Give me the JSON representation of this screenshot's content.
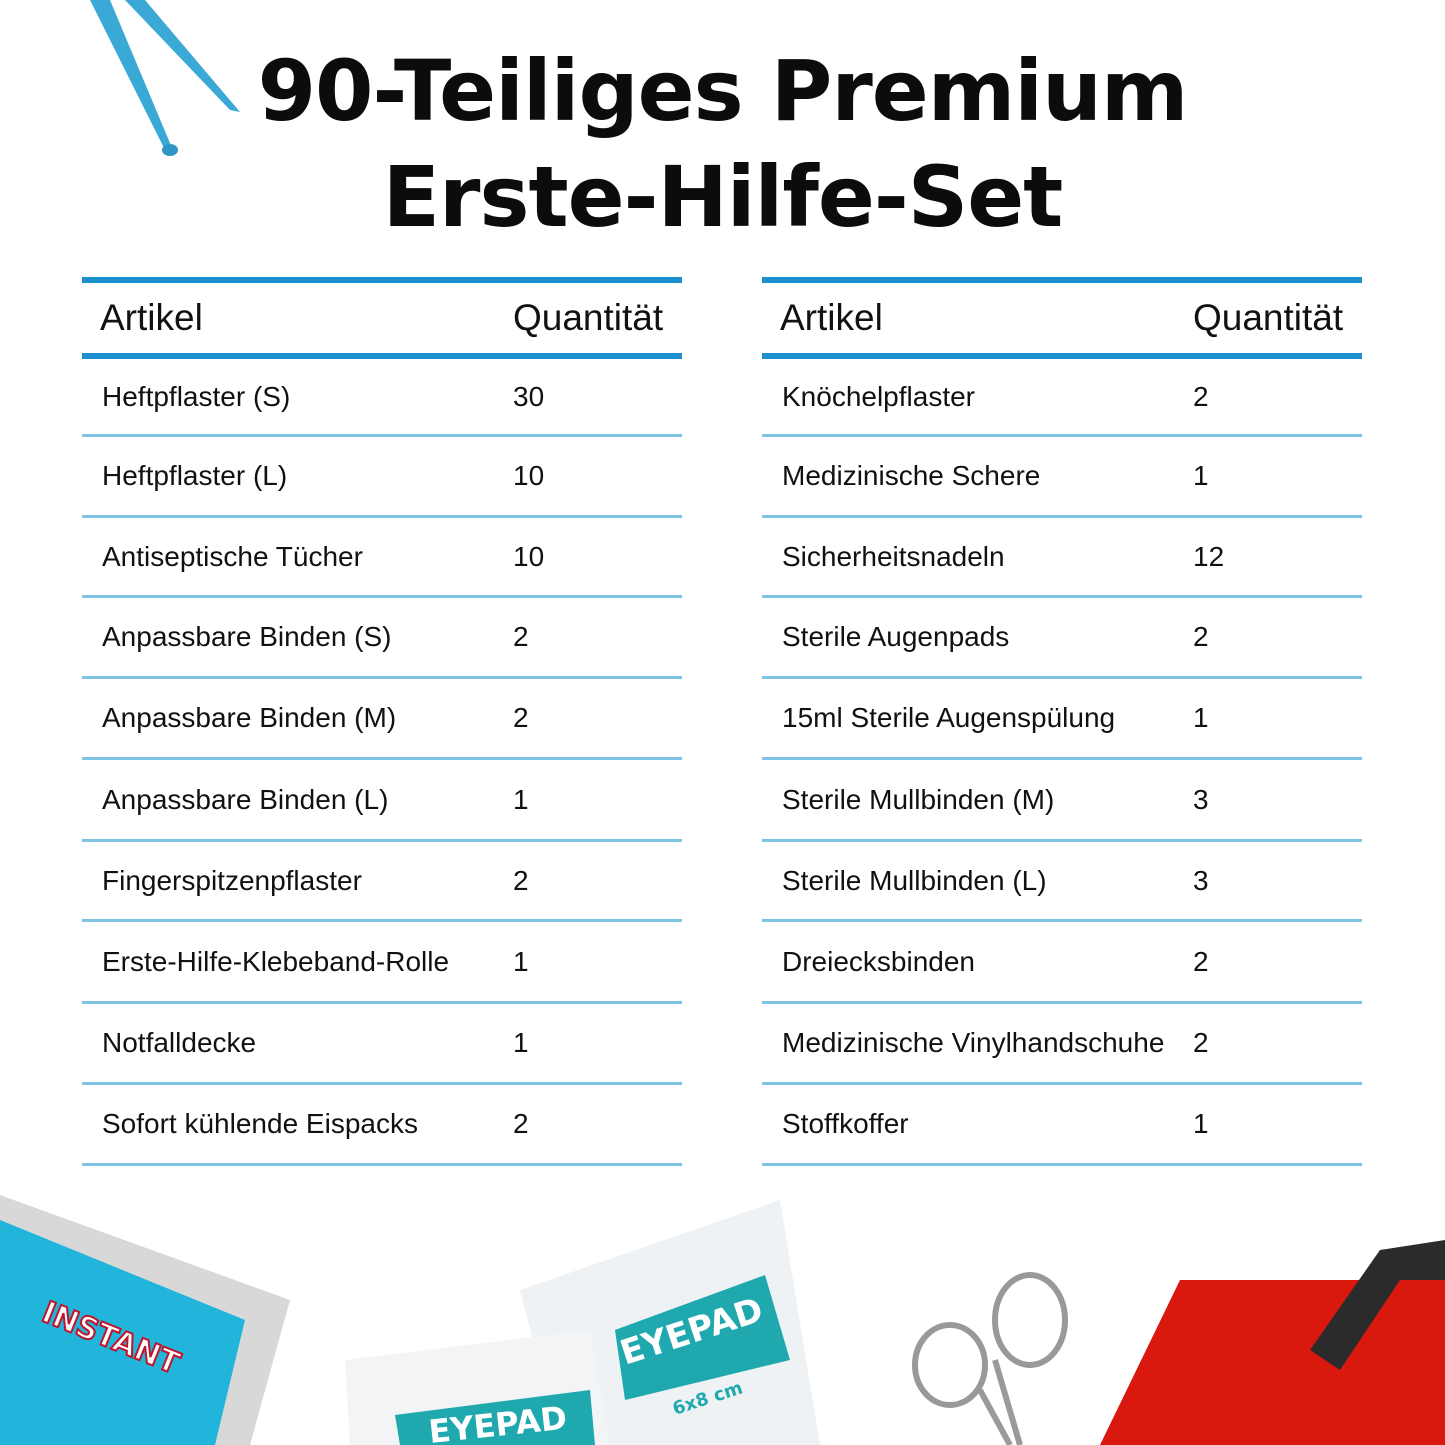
{
  "title": {
    "line1": "90-Teiliges Premium",
    "line2": "Erste-Hilfe-Set"
  },
  "tables": [
    {
      "headers": {
        "article": "Artikel",
        "quantity": "Quantität"
      },
      "rows": [
        {
          "article": "Heftpflaster (S)",
          "quantity": "30"
        },
        {
          "article": "Heftpflaster (L)",
          "quantity": "10"
        },
        {
          "article": "Antiseptische Tücher",
          "quantity": "10"
        },
        {
          "article": "Anpassbare Binden (S)",
          "quantity": "2"
        },
        {
          "article": "Anpassbare Binden (M)",
          "quantity": "2"
        },
        {
          "article": "Anpassbare Binden (L)",
          "quantity": "1"
        },
        {
          "article": "Fingerspitzenpflaster",
          "quantity": "2"
        },
        {
          "article": "Erste-Hilfe-Klebeband-Rolle",
          "quantity": "1"
        },
        {
          "article": "Notfalldecke",
          "quantity": "1"
        },
        {
          "article": "Sofort kühlende Eispacks",
          "quantity": "2"
        }
      ]
    },
    {
      "headers": {
        "article": "Artikel",
        "quantity": "Quantität"
      },
      "rows": [
        {
          "article": "Knöchelpflaster",
          "quantity": "2"
        },
        {
          "article": "Medizinische Schere",
          "quantity": "1"
        },
        {
          "article": "Sicherheitsnadeln",
          "quantity": "12"
        },
        {
          "article": "Sterile Augenpads",
          "quantity": "2"
        },
        {
          "article": "15ml Sterile Augenspülung",
          "quantity": "1"
        },
        {
          "article": "Sterile Mullbinden (M)",
          "quantity": "3"
        },
        {
          "article": "Sterile Mullbinden (L)",
          "quantity": "3"
        },
        {
          "article": "Dreiecksbinden",
          "quantity": "2"
        },
        {
          "article": "Medizinische Vinylhandschuhe",
          "quantity": "2"
        },
        {
          "article": "Stoffkoffer",
          "quantity": "1"
        }
      ]
    }
  ],
  "product_labels": {
    "ice_pack": "INSTANT",
    "eyepad": "EYEPAD",
    "eyepad_size": "6x8 cm"
  },
  "colors": {
    "header_rule": "#1c8fcf",
    "row_rule": "#7fc3e3",
    "ice_pack": "#22b5dc",
    "eyepad_label": "#1fa9ae",
    "bag": "#d9180e"
  }
}
